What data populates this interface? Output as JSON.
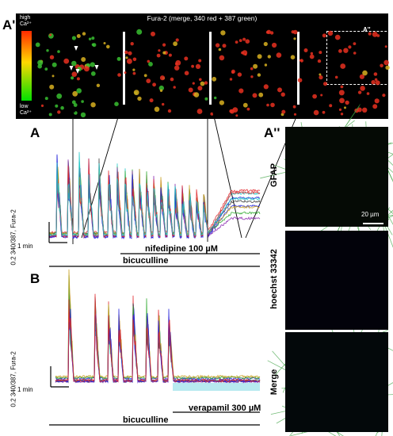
{
  "panel_a_prime": {
    "label": "A'",
    "title": "Fura-2 (merge, 340 red + 387 green)",
    "colorbar": {
      "high_label": "high Ca²⁺",
      "low_label": "low Ca²⁺",
      "colors": [
        "#ff2a00",
        "#ffd800",
        "#00e000"
      ]
    },
    "inset_label": "A''"
  },
  "panel_a": {
    "label": "A",
    "scale_y": "0.2 340/387, Fura-2",
    "scale_x": "1 min",
    "drug1": "nifedipine 100 µM",
    "drug2": "bicuculline",
    "trace_colors": [
      "#1c1cd8",
      "#e0262a",
      "#20c8c8",
      "#3a3a3a",
      "#2aa82a",
      "#8a28b0",
      "#c8a020"
    ]
  },
  "panel_b": {
    "label": "B",
    "scale_y": "0.2 340/387, Fura-2",
    "scale_x": "1 min",
    "drug1": "verapamil 300 µM",
    "drug2": "bicuculline"
  },
  "panel_a_double_prime": {
    "label": "A''",
    "rows": [
      {
        "label": "GFAP",
        "scalebar": "20 µm"
      },
      {
        "label": "hoechst 33342"
      },
      {
        "label": "Merge"
      }
    ]
  }
}
